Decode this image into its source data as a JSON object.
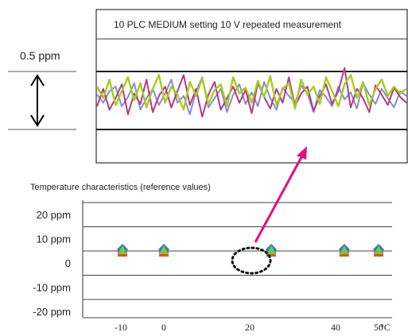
{
  "chart_data": [
    {
      "type": "line",
      "title": "10 PLC MEDIUM setting  10 V repeated measurement",
      "scale_label": "0.5 ppm",
      "series": [
        {
          "color": "#8a8ad0",
          "values": [
            0.05,
            -0.02,
            0.08,
            0.12,
            -0.05,
            0.03,
            0.15,
            -0.08,
            0.02,
            0.1,
            -0.04,
            0.06,
            0.18,
            -0.02,
            0.04,
            -0.12,
            0.08,
            0.2,
            -0.06,
            0.02,
            0.1,
            -0.1,
            0.05,
            0.14,
            -0.03,
            0.07,
            -0.05,
            0.16,
            0.02,
            -0.08,
            0.11,
            0.04,
            -0.02,
            0.13,
            0.06,
            -0.1,
            0.09,
            0.03,
            -0.05,
            0.12,
            0.01,
            0.07,
            -0.07,
            0.15,
            0.05,
            -0.03,
            0.1,
            0.02,
            -0.06,
            0.08,
            0.04
          ]
        },
        {
          "color": "#b03a8a",
          "values": [
            -0.05,
            0.1,
            -0.08,
            0.02,
            0.14,
            -0.12,
            0.06,
            -0.03,
            0.18,
            -0.1,
            0.04,
            0.12,
            -0.06,
            0.08,
            0.22,
            -0.04,
            0.1,
            -0.14,
            0.05,
            0.16,
            -0.08,
            0.02,
            0.12,
            -0.02,
            0.09,
            -0.11,
            0.15,
            0.03,
            -0.07,
            0.1,
            -0.02,
            0.2,
            -0.05,
            0.06,
            0.12,
            -0.09,
            0.04,
            0.14,
            -0.03,
            0.08,
            0.28,
            -0.06,
            0.1,
            0.02,
            -0.1,
            0.13,
            0.05,
            -0.04,
            0.11,
            0.03,
            -0.02
          ]
        },
        {
          "color": "#a6cc1e",
          "values": [
            0.12,
            0.02,
            0.18,
            -0.04,
            0.08,
            0.2,
            0.0,
            0.15,
            -0.06,
            0.1,
            0.22,
            -0.02,
            0.12,
            0.05,
            -0.08,
            0.16,
            0.04,
            0.19,
            -0.03,
            0.09,
            0.14,
            -0.05,
            0.2,
            0.06,
            0.11,
            -0.02,
            0.17,
            0.03,
            0.21,
            -0.04,
            0.1,
            0.15,
            -0.07,
            0.18,
            0.05,
            0.12,
            -0.03,
            0.2,
            0.08,
            -0.05,
            0.14,
            0.22,
            0.02,
            0.16,
            -0.04,
            0.1,
            0.18,
            0.04,
            0.12,
            0.06,
            0.1
          ]
        }
      ]
    },
    {
      "type": "scatter",
      "title": "Temperature characteristics (reference values)",
      "x_categories": [
        "-10",
        "0",
        "20",
        "40",
        "50"
      ],
      "x_unit": "°C",
      "y_ticks": [
        "20 ppm",
        "10 ppm",
        "0",
        "-10 ppm",
        "-20 ppm"
      ],
      "ylim": [
        -20,
        20
      ],
      "grid": true,
      "markers": [
        {
          "shape": "square",
          "color": "#e0532b"
        },
        {
          "shape": "diamond",
          "color": "#2a7fc0"
        },
        {
          "shape": "triangle",
          "color": "#7ec242"
        }
      ],
      "points": [
        {
          "x": "-10",
          "y": 0
        },
        {
          "x": "0",
          "y": 0
        },
        {
          "x": "25",
          "y": 0,
          "highlight": true
        },
        {
          "x": "42",
          "y": 0
        },
        {
          "x": "50",
          "y": 0
        }
      ]
    }
  ],
  "arrow_color": "#e0127a"
}
